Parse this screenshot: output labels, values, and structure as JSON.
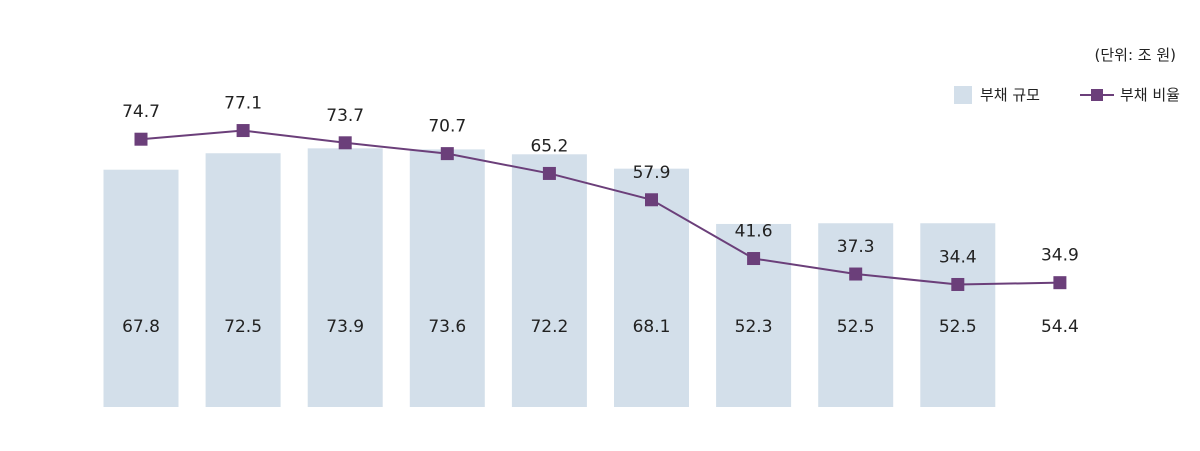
{
  "unit_label": "(단위: 조 원)",
  "legend": {
    "bar_label": "부채 규모",
    "line_label": "부채 비율"
  },
  "colors": {
    "bar": "#d3dfea",
    "line": "#6b3f7a"
  },
  "chart_data": {
    "type": "bar+line",
    "title": "",
    "xlabel": "",
    "ylabel": "",
    "categories": [
      "",
      "",
      "",
      "",
      "",
      "",
      "",
      "",
      "",
      ""
    ],
    "series": [
      {
        "name": "부채 규모",
        "type": "bar",
        "values": [
          67.8,
          72.5,
          73.9,
          73.6,
          72.2,
          68.1,
          52.3,
          52.5,
          52.5,
          54.4
        ],
        "bar_drawn": [
          true,
          true,
          true,
          true,
          true,
          true,
          true,
          true,
          true,
          false
        ]
      },
      {
        "name": "부채 비율",
        "type": "line",
        "values": [
          74.7,
          77.1,
          73.7,
          70.7,
          65.2,
          57.9,
          41.6,
          37.3,
          34.4,
          34.9
        ]
      }
    ],
    "grid": false,
    "legend_position": "top-right"
  }
}
